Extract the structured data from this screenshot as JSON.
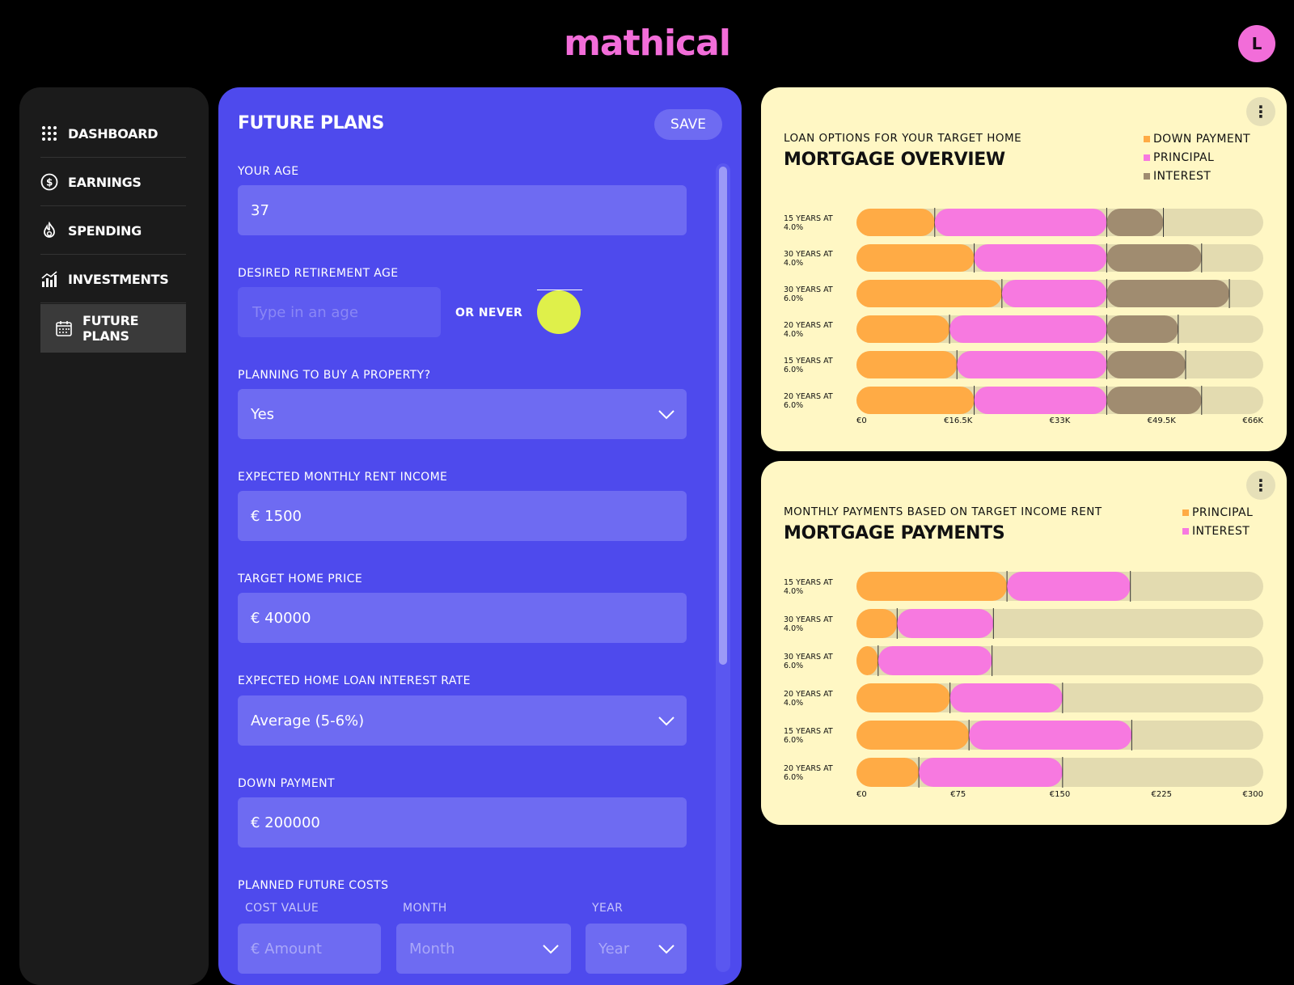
{
  "app": {
    "logo": "mathical",
    "avatar_initial": "L"
  },
  "sidebar": {
    "items": [
      {
        "label": "DASHBOARD",
        "icon": "grid-dots-icon"
      },
      {
        "label": "EARNINGS",
        "icon": "dollar-circle-icon"
      },
      {
        "label": "SPENDING",
        "icon": "flame-icon"
      },
      {
        "label": "INVESTMENTS",
        "icon": "bar-chart-icon"
      },
      {
        "label": "FUTURE PLANS",
        "icon": "calendar-icon",
        "active": true
      }
    ]
  },
  "form": {
    "title": "FUTURE PLANS",
    "save_label": "SAVE",
    "age": {
      "label": "YOUR AGE",
      "value": "37"
    },
    "retirement": {
      "label": "DESIRED RETIREMENT AGE",
      "placeholder": "Type in an age",
      "or_never": "OR NEVER"
    },
    "property": {
      "label": "PLANNING TO BUY A PROPERTY?",
      "value": "Yes"
    },
    "rent": {
      "label": "EXPECTED MONTHLY RENT INCOME",
      "value": "€ 1500"
    },
    "home_price": {
      "label": "TARGET HOME PRICE",
      "value": "€ 40000"
    },
    "interest": {
      "label": "EXPECTED HOME LOAN INTEREST RATE",
      "value": "Average (5-6%)"
    },
    "down_payment": {
      "label": "DOWN PAYMENT",
      "value": "€ 200000"
    },
    "future_costs": {
      "label": "PLANNED FUTURE COSTS",
      "cost_value_label": "COST VALUE",
      "month_label": "MONTH",
      "year_label": "YEAR",
      "amount_placeholder": "€ Amount",
      "month_placeholder": "Month",
      "year_placeholder": "Year"
    }
  },
  "colors": {
    "orange": "#ffab45",
    "pink": "#f779e0",
    "brown": "#a08c70",
    "track": "#e3dbb0"
  },
  "chart_data": [
    {
      "type": "bar",
      "stacked": true,
      "orientation": "horizontal",
      "subtitle": "LOAN OPTIONS FOR YOUR TARGET HOME",
      "title": "MORTGAGE OVERVIEW",
      "categories": [
        "15 YEARS AT 4.0%",
        "30 YEARS AT 4.0%",
        "30 YEARS AT 6.0%",
        "20 YEARS AT 4.0%",
        "15 YEARS AT 6.0%",
        "20 YEARS AT 6.0%"
      ],
      "series": [
        {
          "name": "DOWN PAYMENT",
          "color": "#ffab45",
          "values": [
            12.7,
            19.1,
            23.6,
            15.1,
            16.3,
            19.1
          ]
        },
        {
          "name": "PRINCIPAL",
          "color": "#f779e0",
          "values": [
            27.9,
            21.5,
            17.0,
            25.5,
            24.3,
            21.5
          ]
        },
        {
          "name": "INTEREST",
          "color": "#a08c70",
          "values": [
            9.2,
            15.4,
            19.9,
            11.6,
            12.8,
            15.4
          ]
        }
      ],
      "xlim": [
        0,
        66
      ],
      "xticks": [
        "€0",
        "€16.5K",
        "€33K",
        "€49.5K",
        "€66K"
      ],
      "legend": "top-right"
    },
    {
      "type": "bar",
      "stacked": true,
      "orientation": "horizontal",
      "subtitle": "MONTHLY PAYMENTS BASED ON TARGET INCOME RENT",
      "title": "MORTGAGE PAYMENTS",
      "categories": [
        "15 YEARS AT 4.0%",
        "30 YEARS AT 4.0%",
        "30 YEARS AT 6.0%",
        "20 YEARS AT 4.0%",
        "15 YEARS AT 6.0%",
        "20 YEARS AT 6.0%"
      ],
      "series": [
        {
          "name": "PRINCIPAL",
          "color": "#ffab45",
          "values": [
            111,
            30,
            16,
            69,
            83,
            46
          ]
        },
        {
          "name": "INTEREST",
          "color": "#f779e0",
          "values": [
            91,
            71,
            84,
            83,
            120,
            106
          ]
        }
      ],
      "xlim": [
        0,
        300
      ],
      "xticks": [
        "€0",
        "€75",
        "€150",
        "€225",
        "€300"
      ],
      "legend": "top-right"
    }
  ]
}
